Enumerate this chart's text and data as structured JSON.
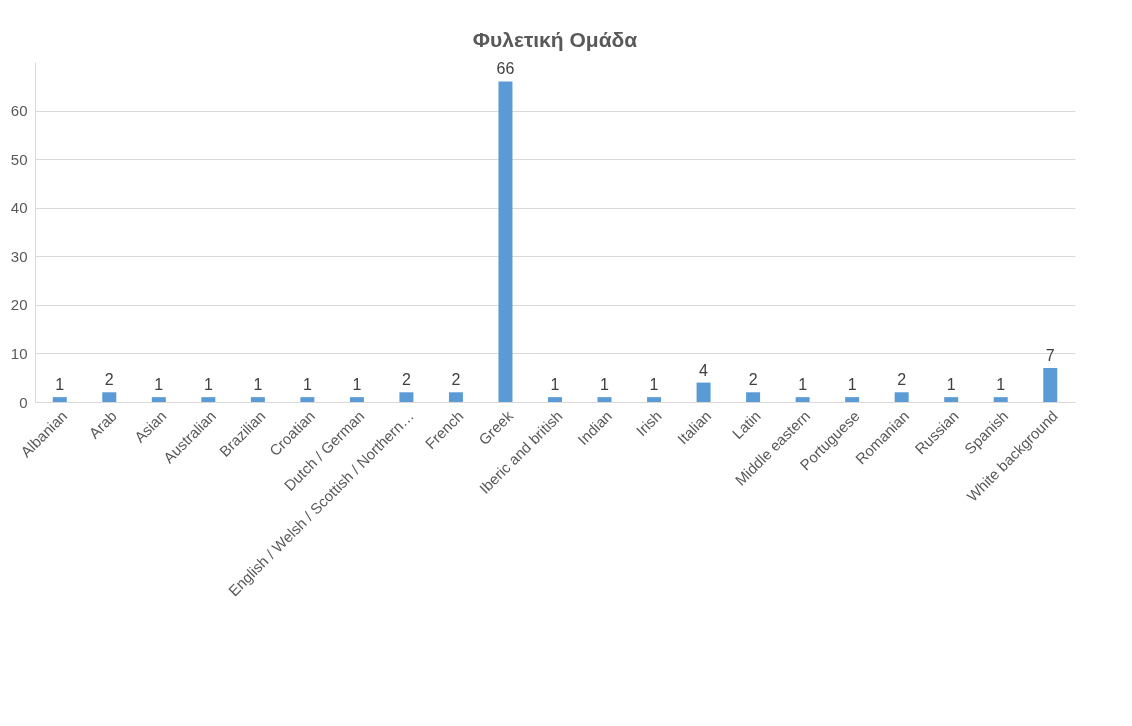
{
  "chart_data": {
    "type": "bar",
    "title": "Φυλετική Ομάδα",
    "categories": [
      "Albanian",
      "Arab",
      "Asian",
      "Australian",
      "Brazilian",
      "Croatian",
      "Dutch / German",
      "English / Welsh / Scottish / Northern…",
      "French",
      "Greek",
      "Iberic and british",
      "Indian",
      "Irish",
      "Italian",
      "Latin",
      "Middle eastern",
      "Portuguese",
      "Romanian",
      "Russian",
      "Spanish",
      "White background"
    ],
    "values": [
      1,
      2,
      1,
      1,
      1,
      1,
      1,
      2,
      2,
      66,
      1,
      1,
      1,
      4,
      2,
      1,
      1,
      2,
      1,
      1,
      7
    ],
    "color": "#5b9bd5",
    "ylim": [
      0,
      70
    ],
    "yticks": [
      0,
      10,
      20,
      30,
      40,
      50,
      60
    ],
    "grid": "y",
    "data_labels": true
  }
}
